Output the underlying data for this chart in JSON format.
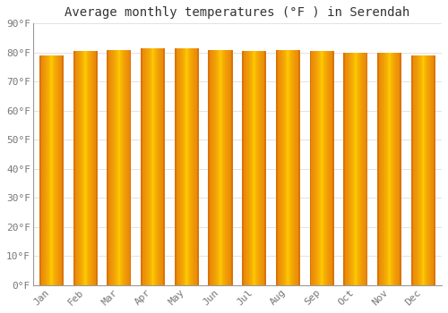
{
  "title": "Average monthly temperatures (°F ) in Serendah",
  "months": [
    "Jan",
    "Feb",
    "Mar",
    "Apr",
    "May",
    "Jun",
    "Jul",
    "Aug",
    "Sep",
    "Oct",
    "Nov",
    "Dec"
  ],
  "values": [
    79,
    80.5,
    81,
    81.5,
    81.5,
    81,
    80.5,
    81,
    80.5,
    80,
    80,
    79
  ],
  "ylim": [
    0,
    90
  ],
  "yticks": [
    0,
    10,
    20,
    30,
    40,
    50,
    60,
    70,
    80,
    90
  ],
  "ytick_labels": [
    "0°F",
    "10°F",
    "20°F",
    "30°F",
    "40°F",
    "50°F",
    "60°F",
    "70°F",
    "80°F",
    "90°F"
  ],
  "bar_color_left": "#E8820A",
  "bar_color_center": "#FFD000",
  "bar_color_right": "#E8820A",
  "bar_edge_color": "#BB6600",
  "background_color": "#FFFFFF",
  "grid_color": "#DDDDDD",
  "title_fontsize": 10,
  "tick_fontsize": 8,
  "font_family": "monospace",
  "bar_width": 0.72
}
